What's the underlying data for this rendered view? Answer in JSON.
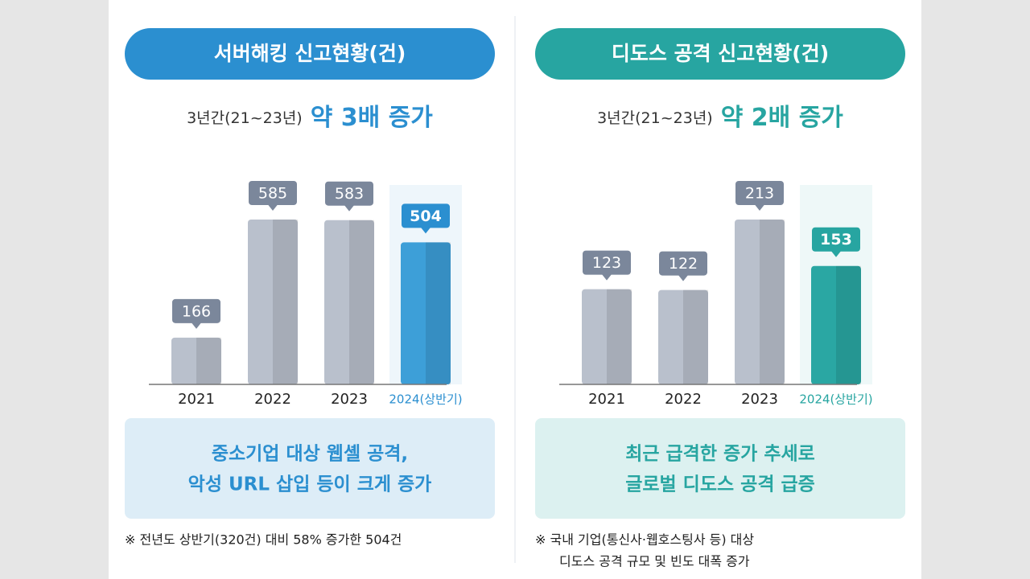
{
  "chart_data": [
    {
      "type": "bar",
      "title": "서버해킹 신고현황(건)",
      "subtitle": "3년간(21~23년)",
      "subtitle_highlight": "약 3배 증가",
      "categories": [
        "2021",
        "2022",
        "2023",
        "2024(상반기)"
      ],
      "values": [
        166,
        585,
        583,
        504
      ],
      "colors": [
        "#b9c0cc",
        "#b9c0cc",
        "#b9c0cc",
        "#3d9fd8"
      ],
      "accent_color": "#2b8fd0",
      "note": [
        "중소기업 대상 웹셸 공격,",
        "악성 URL 삽입 등이 크게 증가"
      ],
      "footnote": [
        "※ 전년도 상반기(320건) 대비 58% 증가한 504건"
      ]
    },
    {
      "type": "bar",
      "title": "디도스 공격 신고현황(건)",
      "subtitle": "3년간(21~23년)",
      "subtitle_highlight": "약 2배 증가",
      "categories": [
        "2021",
        "2022",
        "2023",
        "2024(상반기)"
      ],
      "values": [
        123,
        122,
        213,
        153
      ],
      "colors": [
        "#b9c0cc",
        "#b9c0cc",
        "#b9c0cc",
        "#2aa7a3"
      ],
      "accent_color": "#27a5a1",
      "note": [
        "최근 급격한 증가 추세로",
        "글로벌 디도스 공격 급증"
      ],
      "footnote": [
        "※ 국내 기업(통신사·웹호스팅사 등) 대상",
        "디도스 공격 규모 및 빈도 대폭 증가"
      ]
    }
  ]
}
